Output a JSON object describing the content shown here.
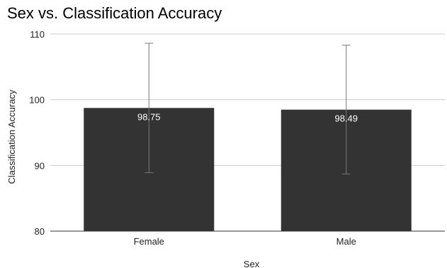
{
  "chart_data": {
    "type": "bar",
    "title": "Sex vs. Classification Accuracy",
    "xlabel": "Sex",
    "ylabel": "Classification Accuracy",
    "categories": [
      "Female",
      "Male"
    ],
    "values": [
      98.75,
      98.49
    ],
    "data_labels": [
      "98.75",
      "98.49"
    ],
    "error_bars": [
      {
        "low": 88.9,
        "high": 108.6
      },
      {
        "low": 88.7,
        "high": 108.3
      }
    ],
    "ylim": [
      80,
      110
    ],
    "yticks": [
      80,
      90,
      100,
      110
    ],
    "ytick_labels": [
      "80",
      "90",
      "100",
      "110"
    ],
    "grid": true,
    "bar_color": "#333333",
    "error_bar_color": "#777777",
    "data_label_color": "#ffffff"
  }
}
